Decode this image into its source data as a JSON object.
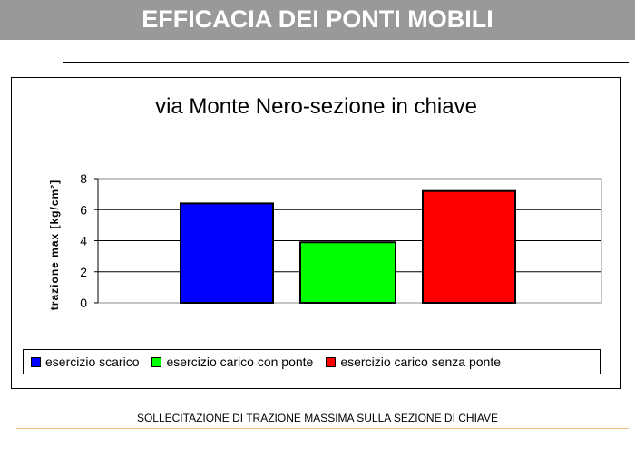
{
  "slide_title": "EFFICACIA DEI PONTI MOBILI",
  "caption": "SOLLECITAZIONE DI TRAZIONE MASSIMA SULLA SEZIONE DI CHIAVE",
  "chart_data": {
    "type": "bar",
    "title": "via Monte Nero-sezione in chiave",
    "ylabel": "trazione max [kg/cm²]",
    "ylim": [
      0,
      8
    ],
    "yticks": [
      "0",
      "2",
      "4",
      "6",
      "8"
    ],
    "grid": true,
    "legend_position": "bottom",
    "series": [
      {
        "name": "esercizio scarico",
        "values": [
          6.4
        ],
        "color": "#0000ff"
      },
      {
        "name": "esercizio carico con ponte",
        "values": [
          3.9
        ],
        "color": "#00ff00"
      },
      {
        "name": "esercizio carico senza ponte",
        "values": [
          7.2
        ],
        "color": "#ff0000"
      }
    ]
  }
}
